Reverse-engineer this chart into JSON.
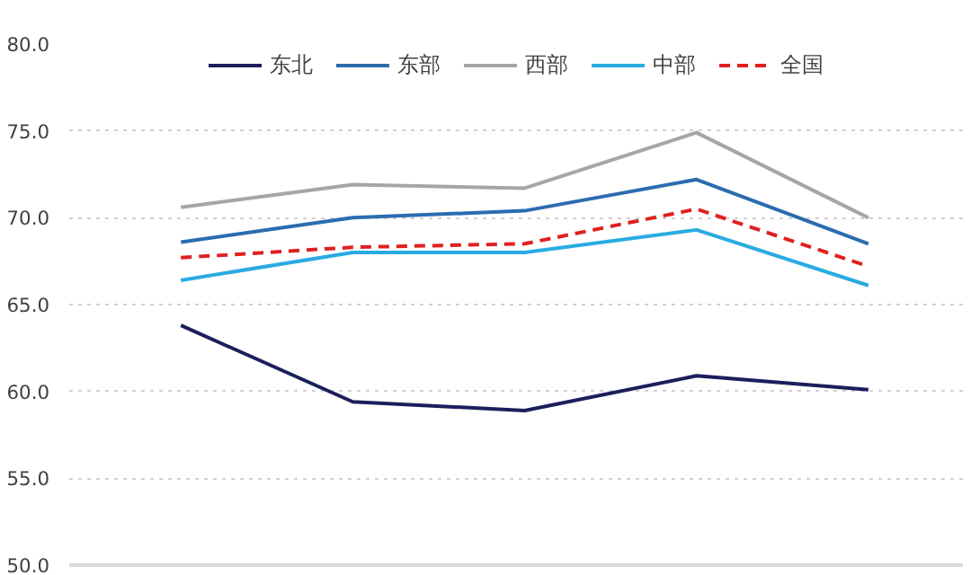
{
  "chart_data": {
    "type": "line",
    "categories": [
      null,
      null,
      null,
      null,
      null
    ],
    "series": [
      {
        "name": "东北",
        "color": "#1a1f5c",
        "values": [
          63.8,
          59.4,
          58.9,
          60.9,
          60.1
        ]
      },
      {
        "name": "东部",
        "color": "#2b6cb0",
        "values": [
          68.6,
          70.0,
          70.4,
          72.2,
          68.5
        ]
      },
      {
        "name": "西部",
        "color": "#a6a6a6",
        "values": [
          70.6,
          71.9,
          71.7,
          74.9,
          70.0
        ]
      },
      {
        "name": "中部",
        "color": "#29abe2",
        "values": [
          66.4,
          68.0,
          68.0,
          69.3,
          66.1
        ]
      },
      {
        "name": "全国",
        "color": "#e02020",
        "values": [
          67.7,
          68.3,
          68.5,
          70.5,
          67.2
        ],
        "line_style": "dashed"
      }
    ],
    "ylim": [
      50,
      80
    ],
    "yticks": [
      {
        "value": 50,
        "label": "50.0"
      },
      {
        "value": 55,
        "label": "55.0"
      },
      {
        "value": 60,
        "label": "60.0"
      },
      {
        "value": 65,
        "label": "65.0"
      },
      {
        "value": 70,
        "label": "70.0"
      },
      {
        "value": 75,
        "label": "75.0"
      },
      {
        "value": 80,
        "label": "80.0"
      }
    ],
    "grid": "y",
    "legend": "top",
    "tick_labels": "y",
    "marker": "none"
  }
}
